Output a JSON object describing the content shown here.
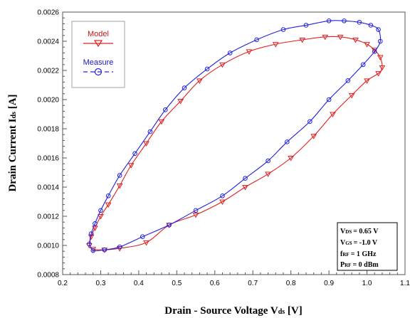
{
  "chart_data": {
    "type": "line",
    "xlabel": "Drain - Source Voltage V",
    "xlabel_sub": "ds",
    "xlabel_unit": " [V]",
    "ylabel": "Drain Current I",
    "ylabel_sub": "ds",
    "ylabel_unit": " [A]",
    "xlim": [
      0.2,
      1.1
    ],
    "ylim": [
      0.0008,
      0.0026
    ],
    "x_ticks": [
      "0.2",
      "0.3",
      "0.4",
      "0.5",
      "0.6",
      "0.7",
      "0.8",
      "0.9",
      "1.0",
      "1.1"
    ],
    "y_ticks": [
      "0.0008",
      "0.0010",
      "0.0012",
      "0.0014",
      "0.0016",
      "0.0018",
      "0.0020",
      "0.0022",
      "0.0024",
      "0.0026"
    ],
    "grid": false,
    "legend_position": "top-left",
    "series": [
      {
        "name": "Model",
        "color": "#e02020",
        "marker": "triangle-down",
        "line": "solid",
        "points": [
          [
            0.27,
            0.001
          ],
          [
            0.28,
            0.000975
          ],
          [
            0.31,
            0.00097
          ],
          [
            0.35,
            0.00098
          ],
          [
            0.42,
            0.00102
          ],
          [
            0.48,
            0.00114
          ],
          [
            0.55,
            0.00121
          ],
          [
            0.62,
            0.0013
          ],
          [
            0.68,
            0.0014
          ],
          [
            0.74,
            0.00149
          ],
          [
            0.8,
            0.0016
          ],
          [
            0.86,
            0.00175
          ],
          [
            0.91,
            0.0019
          ],
          [
            0.96,
            0.00203
          ],
          [
            1.0,
            0.00213
          ],
          [
            1.03,
            0.00218
          ],
          [
            1.04,
            0.00222
          ],
          [
            1.035,
            0.00229
          ],
          [
            1.02,
            0.00234
          ],
          [
            1.0,
            0.00238
          ],
          [
            0.97,
            0.00241
          ],
          [
            0.93,
            0.00243
          ],
          [
            0.89,
            0.00243
          ],
          [
            0.83,
            0.00241
          ],
          [
            0.76,
            0.00238
          ],
          [
            0.69,
            0.00233
          ],
          [
            0.62,
            0.00224
          ],
          [
            0.56,
            0.00213
          ],
          [
            0.51,
            0.00199
          ],
          [
            0.46,
            0.00185
          ],
          [
            0.42,
            0.0017
          ],
          [
            0.38,
            0.00155
          ],
          [
            0.35,
            0.00141
          ],
          [
            0.32,
            0.00128
          ],
          [
            0.3,
            0.0012
          ],
          [
            0.285,
            0.00112
          ],
          [
            0.275,
            0.00106
          ],
          [
            0.27,
            0.001
          ]
        ]
      },
      {
        "name": "Measure",
        "color": "#2020e0",
        "marker": "circle",
        "line": "dashed",
        "points": [
          [
            0.27,
            0.00101
          ],
          [
            0.28,
            0.000965
          ],
          [
            0.31,
            0.00097
          ],
          [
            0.35,
            0.00099
          ],
          [
            0.41,
            0.00106
          ],
          [
            0.48,
            0.00114
          ],
          [
            0.55,
            0.00124
          ],
          [
            0.62,
            0.00134
          ],
          [
            0.68,
            0.00146
          ],
          [
            0.74,
            0.00158
          ],
          [
            0.79,
            0.00171
          ],
          [
            0.85,
            0.00185
          ],
          [
            0.9,
            0.002
          ],
          [
            0.95,
            0.00213
          ],
          [
            0.99,
            0.00224
          ],
          [
            1.02,
            0.00233
          ],
          [
            1.035,
            0.0024
          ],
          [
            1.03,
            0.00248
          ],
          [
            1.01,
            0.00251
          ],
          [
            0.98,
            0.00253
          ],
          [
            0.94,
            0.00254
          ],
          [
            0.9,
            0.00254
          ],
          [
            0.84,
            0.00251
          ],
          [
            0.78,
            0.00248
          ],
          [
            0.71,
            0.00241
          ],
          [
            0.64,
            0.00232
          ],
          [
            0.58,
            0.00221
          ],
          [
            0.52,
            0.00208
          ],
          [
            0.47,
            0.00193
          ],
          [
            0.43,
            0.00178
          ],
          [
            0.39,
            0.00163
          ],
          [
            0.35,
            0.00148
          ],
          [
            0.32,
            0.00134
          ],
          [
            0.3,
            0.00124
          ],
          [
            0.285,
            0.00115
          ],
          [
            0.275,
            0.00108
          ],
          [
            0.27,
            0.00101
          ]
        ]
      }
    ]
  },
  "info_box": [
    {
      "main": "V",
      "sub": "DS",
      "value": "= 0.65 V"
    },
    {
      "main": "V",
      "sub": "GS",
      "value": "= -1.0 V"
    },
    {
      "main": "f",
      "sub": "RF",
      "value": "= 1 GHz"
    },
    {
      "main": "P",
      "sub": "RF",
      "value": "= 0 dBm"
    }
  ]
}
